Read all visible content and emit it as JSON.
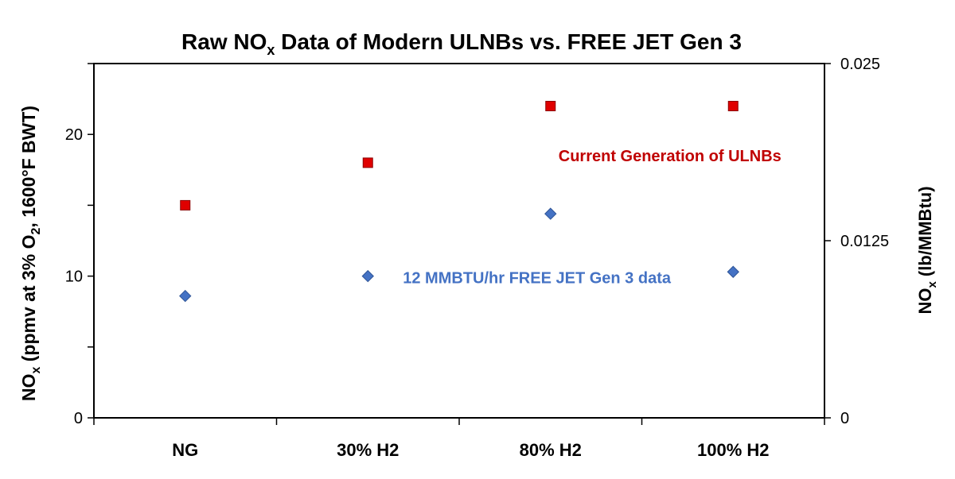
{
  "chart_data": {
    "type": "scatter",
    "title": {
      "prefix": "Raw NO",
      "sub": "x",
      "suffix": " Data of Modern ULNBs vs. FREE JET Gen 3"
    },
    "ylabel_left": {
      "parts": [
        {
          "t": "NO",
          "s": "normal"
        },
        {
          "t": "x",
          "s": "sub"
        },
        {
          "t": " (ppmv at 3% O",
          "s": "normal"
        },
        {
          "t": "2",
          "s": "sub"
        },
        {
          "t": ", 1600°F BWT)",
          "s": "normal"
        }
      ]
    },
    "ylabel_right": {
      "parts": [
        {
          "t": "NO",
          "s": "normal"
        },
        {
          "t": "x",
          "s": "sub"
        },
        {
          "t": " (lb/MMBtu)",
          "s": "normal"
        }
      ]
    },
    "categories": [
      "NG",
      "30% H2",
      "80% H2",
      "100% H2"
    ],
    "y_left": {
      "min": 0,
      "max": 25,
      "major_ticks": [
        0,
        5,
        10,
        15,
        20,
        25
      ],
      "tick_labels": [
        {
          "value": 0,
          "label": "0"
        },
        {
          "value": 10,
          "label": "10"
        },
        {
          "value": 20,
          "label": "20"
        }
      ]
    },
    "y_right": {
      "min": 0,
      "max": 0.025,
      "tick_labels": [
        {
          "value": 0,
          "label": "0"
        },
        {
          "value": 0.0125,
          "label": "0.0125"
        },
        {
          "value": 0.025,
          "label": "0.025"
        }
      ]
    },
    "series": [
      {
        "name": "Current Generation of ULNBs",
        "marker": "square",
        "color": "#e00000",
        "stroke": "#8b0000",
        "values": [
          15,
          18,
          22,
          22
        ]
      },
      {
        "name": "12 MMBTU/hr FREE JET Gen 3 data",
        "marker": "diamond",
        "color": "#4472c4",
        "stroke": "#2f5597",
        "values": [
          8.6,
          10,
          14.4,
          10.3
        ]
      }
    ],
    "annotations": [
      {
        "text": "Current Generation of ULNBs",
        "color": "#c00000",
        "anchor": {
          "category": 2,
          "value": 18.5
        }
      },
      {
        "text": "12 MMBTU/hr FREE JET Gen 3 data",
        "color": "#4472c4",
        "anchor": {
          "category": 1,
          "value": 9.9
        }
      }
    ],
    "grid": false,
    "legend": "none"
  }
}
